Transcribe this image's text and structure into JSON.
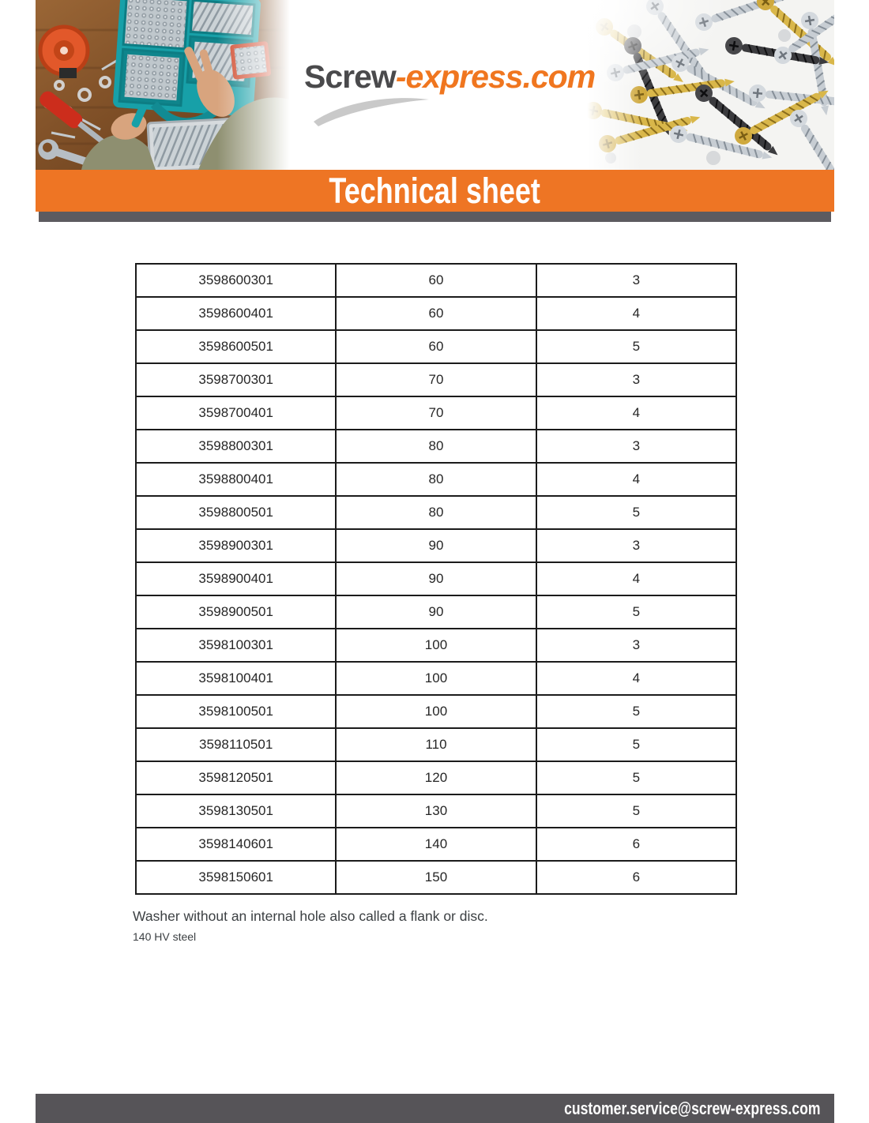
{
  "brand": {
    "logo_primary": "Screw",
    "logo_secondary": "-express.com"
  },
  "banner": {
    "title": "Technical sheet"
  },
  "header_photos": {
    "left": "workbench-screw-assortment-photo",
    "right": "pile-of-screws-photo"
  },
  "table": {
    "rows": [
      [
        "3598600301",
        "60",
        "3"
      ],
      [
        "3598600401",
        "60",
        "4"
      ],
      [
        "3598600501",
        "60",
        "5"
      ],
      [
        "3598700301",
        "70",
        "3"
      ],
      [
        "3598700401",
        "70",
        "4"
      ],
      [
        "3598800301",
        "80",
        "3"
      ],
      [
        "3598800401",
        "80",
        "4"
      ],
      [
        "3598800501",
        "80",
        "5"
      ],
      [
        "3598900301",
        "90",
        "3"
      ],
      [
        "3598900401",
        "90",
        "4"
      ],
      [
        "3598900501",
        "90",
        "5"
      ],
      [
        "3598100301",
        "100",
        "3"
      ],
      [
        "3598100401",
        "100",
        "4"
      ],
      [
        "3598100501",
        "100",
        "5"
      ],
      [
        "3598110501",
        "110",
        "5"
      ],
      [
        "3598120501",
        "120",
        "5"
      ],
      [
        "3598130501",
        "130",
        "5"
      ],
      [
        "3598140601",
        "140",
        "6"
      ],
      [
        "3598150601",
        "150",
        "6"
      ]
    ]
  },
  "notes": {
    "description": "Washer without an internal hole also called a flank or disc.",
    "material": "140 HV steel"
  },
  "footer": {
    "email": "customer.service@screw-express.com"
  },
  "colors": {
    "accent_orange": "#ee7524",
    "logo_orange": "#f0761f",
    "logo_gray": "#4a4a4c",
    "banner_shadow_gray": "#5d5b60",
    "footer_gray": "#565458",
    "table_border": "#1b1b1b"
  }
}
